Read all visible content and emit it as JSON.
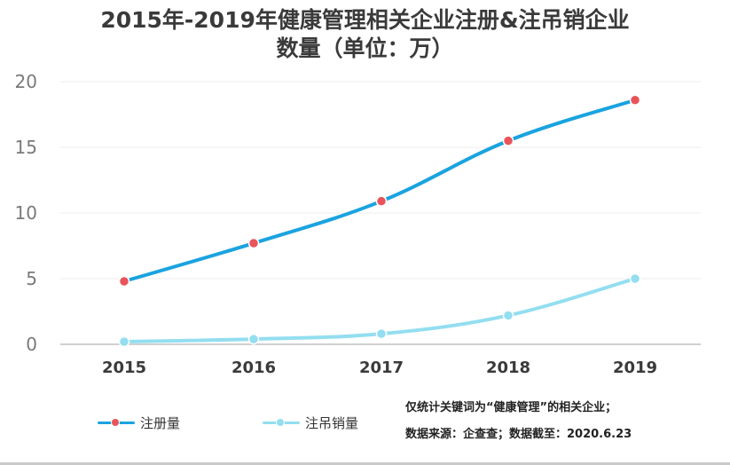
{
  "chart_data": {
    "type": "line",
    "title": "2015年-2019年健康管理相关企业注册&注吊销企业",
    "subtitle": "数量（单位：万）",
    "categories": [
      "2015",
      "2016",
      "2017",
      "2018",
      "2019"
    ],
    "series": [
      {
        "name": "注册量",
        "values": [
          4.8,
          7.7,
          10.9,
          15.5,
          18.6
        ],
        "color": "#1aa3e0",
        "marker": "#e8545a"
      },
      {
        "name": "注吊销量",
        "values": [
          0.2,
          0.4,
          0.8,
          2.2,
          5.0
        ],
        "color": "#93def0",
        "marker": "#93def0"
      }
    ],
    "yticks": [
      "0",
      "5",
      "10",
      "15",
      "20"
    ],
    "ylim": [
      0,
      20
    ],
    "grid": true,
    "legend": "bottom-left"
  },
  "notes": {
    "line1": "仅统计关键词为“健康管理”的相关企业；",
    "line2": "数据来源：企查查；数据截至：2020.6.23"
  }
}
